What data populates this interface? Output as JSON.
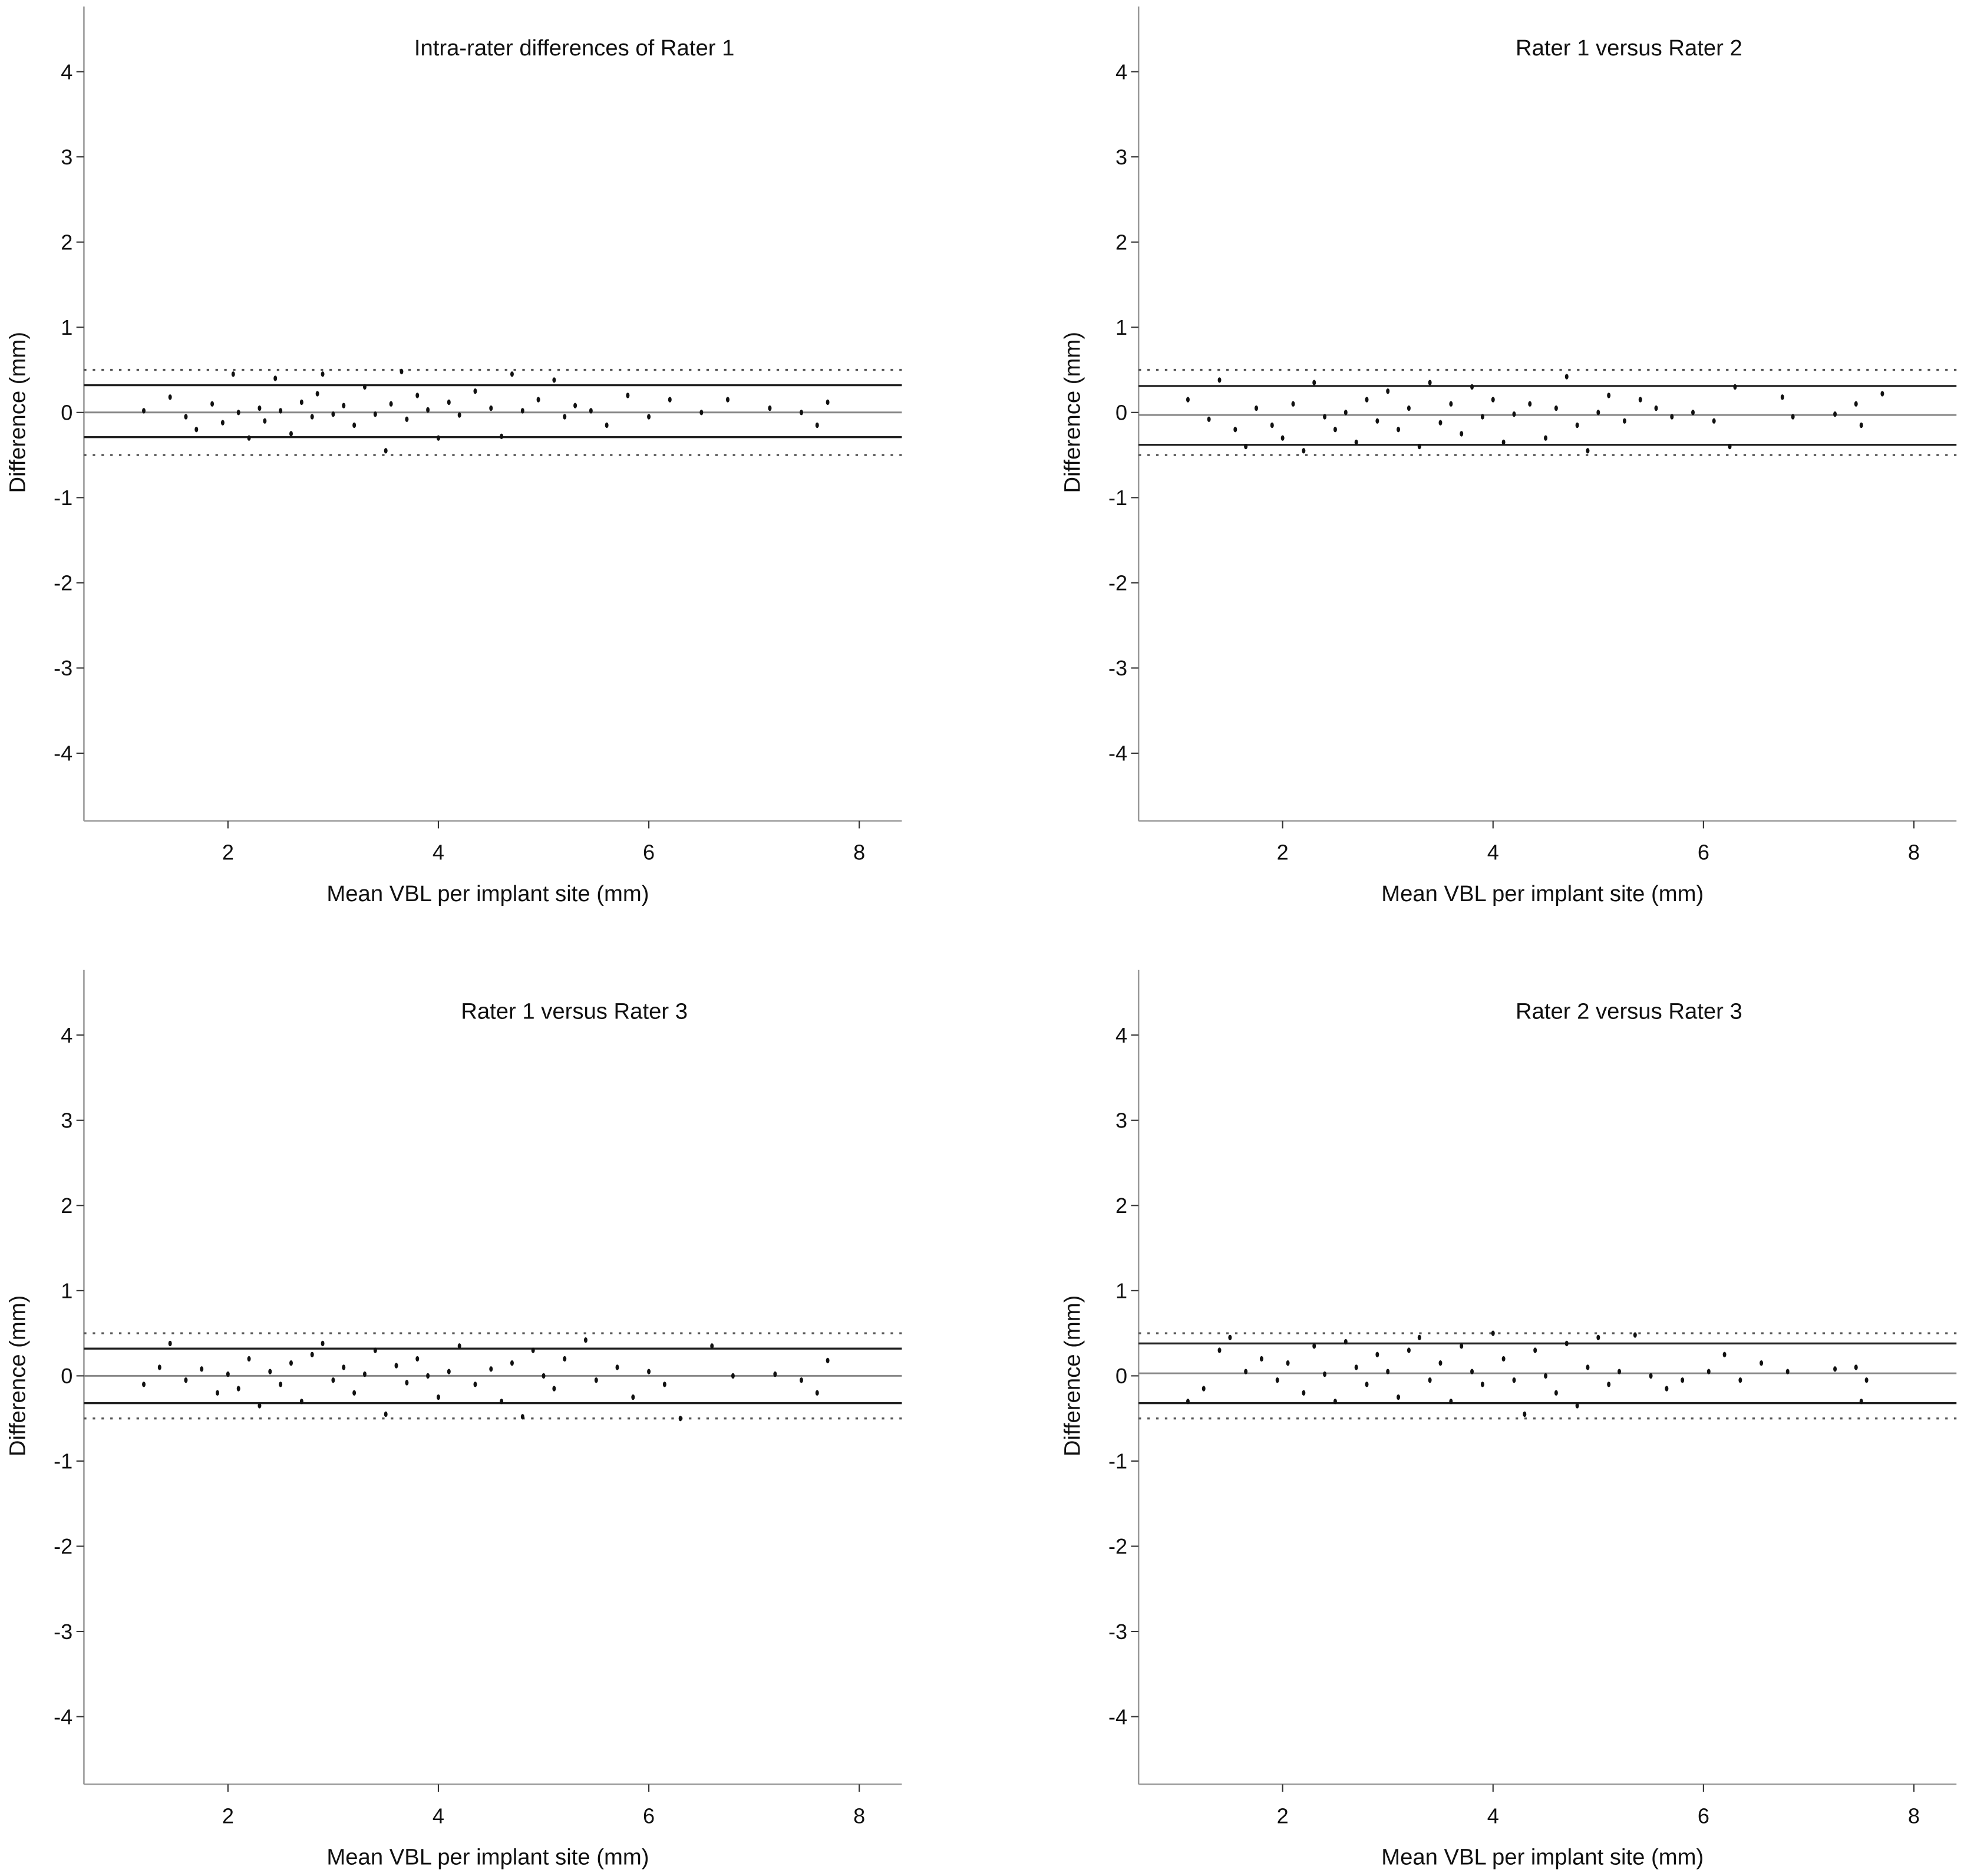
{
  "chart_data": [
    {
      "type": "scatter",
      "title": "Intra-rater differences of Rater 1",
      "xlabel": "Mean VBL per implant site (mm)",
      "ylabel": "Difference (mm)",
      "xlim": [
        0.63,
        8.4
      ],
      "ylim": [
        -4.8,
        4.8
      ],
      "xticks": [
        2,
        4,
        6,
        8
      ],
      "yticks": [
        4,
        3,
        2,
        1,
        0,
        -1,
        -2,
        -3,
        -4
      ],
      "mean": 0.0,
      "loa_upper": 0.32,
      "loa_lower": -0.29,
      "ref_upper": 0.5,
      "ref_lower": -0.5,
      "points": [
        [
          1.2,
          0.02
        ],
        [
          1.45,
          0.18
        ],
        [
          1.6,
          -0.05
        ],
        [
          1.7,
          -0.2
        ],
        [
          1.85,
          0.1
        ],
        [
          1.95,
          -0.12
        ],
        [
          2.05,
          0.45
        ],
        [
          2.1,
          0.0
        ],
        [
          2.2,
          -0.3
        ],
        [
          2.3,
          0.05
        ],
        [
          2.35,
          -0.1
        ],
        [
          2.45,
          0.4
        ],
        [
          2.5,
          0.02
        ],
        [
          2.6,
          -0.25
        ],
        [
          2.7,
          0.12
        ],
        [
          2.8,
          -0.05
        ],
        [
          2.85,
          0.22
        ],
        [
          2.9,
          0.45
        ],
        [
          3.0,
          -0.02
        ],
        [
          3.1,
          0.08
        ],
        [
          3.2,
          -0.15
        ],
        [
          3.3,
          0.3
        ],
        [
          3.4,
          -0.02
        ],
        [
          3.5,
          -0.45
        ],
        [
          3.55,
          0.1
        ],
        [
          3.65,
          0.48
        ],
        [
          3.7,
          -0.08
        ],
        [
          3.8,
          0.2
        ],
        [
          3.9,
          0.03
        ],
        [
          4.0,
          -0.3
        ],
        [
          4.1,
          0.12
        ],
        [
          4.2,
          -0.03
        ],
        [
          4.35,
          0.25
        ],
        [
          4.5,
          0.05
        ],
        [
          4.6,
          -0.28
        ],
        [
          4.7,
          0.45
        ],
        [
          4.8,
          0.02
        ],
        [
          4.95,
          0.15
        ],
        [
          5.1,
          0.38
        ],
        [
          5.2,
          -0.05
        ],
        [
          5.3,
          0.08
        ],
        [
          5.45,
          0.02
        ],
        [
          5.6,
          -0.15
        ],
        [
          5.8,
          0.2
        ],
        [
          6.0,
          -0.05
        ],
        [
          6.2,
          0.15
        ],
        [
          6.5,
          0.0
        ],
        [
          6.75,
          0.15
        ],
        [
          7.15,
          0.05
        ],
        [
          7.45,
          0.0
        ],
        [
          7.6,
          -0.15
        ],
        [
          7.7,
          0.12
        ]
      ]
    },
    {
      "type": "scatter",
      "title": "Rater 1 versus Rater 2",
      "xlabel": "Mean VBL per implant site (mm)",
      "ylabel": "Difference (mm)",
      "xlim": [
        0.63,
        8.4
      ],
      "ylim": [
        -4.8,
        4.8
      ],
      "xticks": [
        2,
        4,
        6,
        8
      ],
      "yticks": [
        4,
        3,
        2,
        1,
        0,
        -1,
        -2,
        -3,
        -4
      ],
      "mean": -0.03,
      "loa_upper": 0.31,
      "loa_lower": -0.38,
      "ref_upper": 0.5,
      "ref_lower": -0.5,
      "points": [
        [
          1.1,
          0.15
        ],
        [
          1.3,
          -0.08
        ],
        [
          1.4,
          0.38
        ],
        [
          1.55,
          -0.2
        ],
        [
          1.65,
          -0.4
        ],
        [
          1.75,
          0.05
        ],
        [
          1.9,
          -0.15
        ],
        [
          2.0,
          -0.3
        ],
        [
          2.1,
          0.1
        ],
        [
          2.2,
          -0.45
        ],
        [
          2.3,
          0.35
        ],
        [
          2.4,
          -0.05
        ],
        [
          2.5,
          -0.2
        ],
        [
          2.6,
          0.0
        ],
        [
          2.7,
          -0.35
        ],
        [
          2.8,
          0.15
        ],
        [
          2.9,
          -0.1
        ],
        [
          3.0,
          0.25
        ],
        [
          3.1,
          -0.2
        ],
        [
          3.2,
          0.05
        ],
        [
          3.3,
          -0.4
        ],
        [
          3.4,
          0.35
        ],
        [
          3.5,
          -0.12
        ],
        [
          3.6,
          0.1
        ],
        [
          3.7,
          -0.25
        ],
        [
          3.8,
          0.3
        ],
        [
          3.9,
          -0.05
        ],
        [
          4.0,
          0.15
        ],
        [
          4.1,
          -0.35
        ],
        [
          4.2,
          -0.02
        ],
        [
          4.35,
          0.1
        ],
        [
          4.5,
          -0.3
        ],
        [
          4.6,
          0.05
        ],
        [
          4.7,
          0.42
        ],
        [
          4.8,
          -0.15
        ],
        [
          4.9,
          -0.45
        ],
        [
          5.0,
          0.0
        ],
        [
          5.1,
          0.2
        ],
        [
          5.25,
          -0.1
        ],
        [
          5.4,
          0.15
        ],
        [
          5.55,
          0.05
        ],
        [
          5.7,
          -0.05
        ],
        [
          5.9,
          0.0
        ],
        [
          6.1,
          -0.1
        ],
        [
          6.25,
          -0.4
        ],
        [
          6.3,
          0.3
        ],
        [
          6.75,
          0.18
        ],
        [
          6.85,
          -0.05
        ],
        [
          7.25,
          -0.02
        ],
        [
          7.45,
          0.1
        ],
        [
          7.5,
          -0.15
        ],
        [
          7.7,
          0.22
        ]
      ]
    },
    {
      "type": "scatter",
      "title": "Rater 1 versus Rater 3",
      "xlabel": "Mean VBL per implant site (mm)",
      "ylabel": "Difference (mm)",
      "xlim": [
        0.63,
        8.4
      ],
      "ylim": [
        -4.8,
        4.8
      ],
      "xticks": [
        2,
        4,
        6,
        8
      ],
      "yticks": [
        4,
        3,
        2,
        1,
        0,
        -1,
        -2,
        -3,
        -4
      ],
      "mean": 0.0,
      "loa_upper": 0.32,
      "loa_lower": -0.32,
      "ref_upper": 0.5,
      "ref_lower": -0.5,
      "points": [
        [
          1.2,
          -0.1
        ],
        [
          1.35,
          0.1
        ],
        [
          1.45,
          0.38
        ],
        [
          1.6,
          -0.05
        ],
        [
          1.75,
          0.08
        ],
        [
          1.9,
          -0.2
        ],
        [
          2.0,
          0.02
        ],
        [
          2.1,
          -0.15
        ],
        [
          2.2,
          0.2
        ],
        [
          2.3,
          -0.35
        ],
        [
          2.4,
          0.05
        ],
        [
          2.5,
          -0.1
        ],
        [
          2.6,
          0.15
        ],
        [
          2.7,
          -0.3
        ],
        [
          2.8,
          0.25
        ],
        [
          2.9,
          0.38
        ],
        [
          3.0,
          -0.05
        ],
        [
          3.1,
          0.1
        ],
        [
          3.2,
          -0.2
        ],
        [
          3.3,
          0.02
        ],
        [
          3.4,
          0.3
        ],
        [
          3.5,
          -0.45
        ],
        [
          3.6,
          0.12
        ],
        [
          3.7,
          -0.08
        ],
        [
          3.8,
          0.2
        ],
        [
          3.9,
          0.0
        ],
        [
          4.0,
          -0.25
        ],
        [
          4.1,
          0.05
        ],
        [
          4.2,
          0.35
        ],
        [
          4.35,
          -0.1
        ],
        [
          4.5,
          0.08
        ],
        [
          4.6,
          -0.3
        ],
        [
          4.7,
          0.15
        ],
        [
          4.8,
          -0.48
        ],
        [
          4.9,
          0.3
        ],
        [
          5.0,
          0.0
        ],
        [
          5.1,
          -0.15
        ],
        [
          5.2,
          0.2
        ],
        [
          5.4,
          0.42
        ],
        [
          5.5,
          -0.05
        ],
        [
          5.7,
          0.1
        ],
        [
          5.85,
          -0.25
        ],
        [
          6.0,
          0.05
        ],
        [
          6.15,
          -0.1
        ],
        [
          6.3,
          -0.5
        ],
        [
          6.6,
          0.35
        ],
        [
          6.8,
          0.0
        ],
        [
          7.2,
          0.02
        ],
        [
          7.45,
          -0.05
        ],
        [
          7.6,
          -0.2
        ],
        [
          7.7,
          0.18
        ]
      ]
    },
    {
      "type": "scatter",
      "title": "Rater 2 versus Rater 3",
      "xlabel": "Mean VBL per implant site (mm)",
      "ylabel": "Difference (mm)",
      "xlim": [
        0.63,
        8.4
      ],
      "ylim": [
        -4.8,
        4.8
      ],
      "xticks": [
        2,
        4,
        6,
        8
      ],
      "yticks": [
        4,
        3,
        2,
        1,
        0,
        -1,
        -2,
        -3,
        -4
      ],
      "mean": 0.03,
      "loa_upper": 0.38,
      "loa_lower": -0.32,
      "ref_upper": 0.5,
      "ref_lower": -0.5,
      "points": [
        [
          1.1,
          -0.3
        ],
        [
          1.25,
          -0.15
        ],
        [
          1.4,
          0.3
        ],
        [
          1.5,
          0.45
        ],
        [
          1.65,
          0.05
        ],
        [
          1.8,
          0.2
        ],
        [
          1.95,
          -0.05
        ],
        [
          2.05,
          0.15
        ],
        [
          2.2,
          -0.2
        ],
        [
          2.3,
          0.35
        ],
        [
          2.4,
          0.02
        ],
        [
          2.5,
          -0.3
        ],
        [
          2.6,
          0.4
        ],
        [
          2.7,
          0.1
        ],
        [
          2.8,
          -0.1
        ],
        [
          2.9,
          0.25
        ],
        [
          3.0,
          0.05
        ],
        [
          3.1,
          -0.25
        ],
        [
          3.2,
          0.3
        ],
        [
          3.3,
          0.45
        ],
        [
          3.4,
          -0.05
        ],
        [
          3.5,
          0.15
        ],
        [
          3.6,
          -0.3
        ],
        [
          3.7,
          0.35
        ],
        [
          3.8,
          0.05
        ],
        [
          3.9,
          -0.1
        ],
        [
          4.0,
          0.5
        ],
        [
          4.1,
          0.2
        ],
        [
          4.2,
          -0.05
        ],
        [
          4.3,
          -0.45
        ],
        [
          4.4,
          0.3
        ],
        [
          4.5,
          0.0
        ],
        [
          4.6,
          -0.2
        ],
        [
          4.7,
          0.38
        ],
        [
          4.8,
          -0.35
        ],
        [
          4.9,
          0.1
        ],
        [
          5.0,
          0.45
        ],
        [
          5.1,
          -0.1
        ],
        [
          5.2,
          0.05
        ],
        [
          5.35,
          0.48
        ],
        [
          5.5,
          0.0
        ],
        [
          5.65,
          -0.15
        ],
        [
          5.8,
          -0.05
        ],
        [
          6.05,
          0.05
        ],
        [
          6.2,
          0.25
        ],
        [
          6.35,
          -0.05
        ],
        [
          6.55,
          0.15
        ],
        [
          6.8,
          0.05
        ],
        [
          7.25,
          0.08
        ],
        [
          7.45,
          0.1
        ],
        [
          7.5,
          -0.3
        ],
        [
          7.55,
          -0.05
        ]
      ]
    }
  ]
}
